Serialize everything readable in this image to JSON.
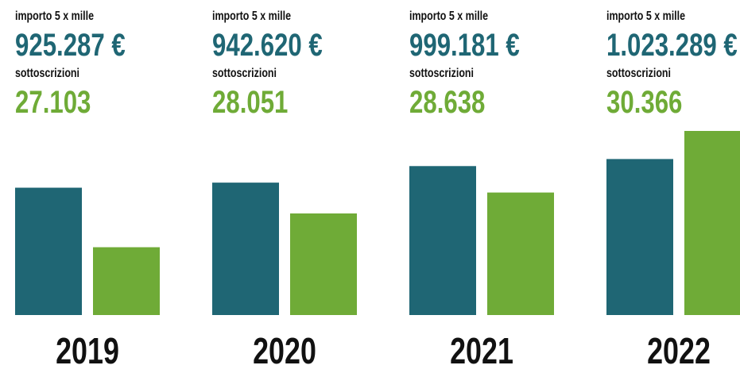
{
  "chart_data": {
    "type": "bar",
    "categories": [
      "2019",
      "2020",
      "2021",
      "2022"
    ],
    "series": [
      {
        "name": "importo 5 x mille",
        "color": "#1f6674",
        "values": [
          925287,
          942620,
          999181,
          1023289
        ],
        "value_labels": [
          "925.287 €",
          "942.620 €",
          "999.181 €",
          "1.023.289 €"
        ]
      },
      {
        "name": "sottoscrizioni",
        "color": "#6fab37",
        "axis": "y2",
        "values": [
          27103,
          28051,
          28638,
          30366
        ],
        "value_labels": [
          "27.103",
          "28.051",
          "28.638",
          "30.366"
        ]
      }
    ],
    "ylim": [
      490000,
      1160000
    ],
    "y2lim": [
      25200,
      30700
    ]
  }
}
